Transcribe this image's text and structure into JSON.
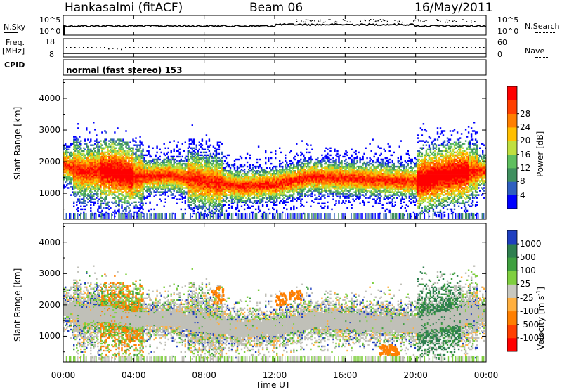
{
  "header": {
    "station": "Hankasalmi (fitACF)",
    "beam": "Beam 06",
    "date": "16/May/2011"
  },
  "strip_labels": {
    "nsky": "N.Sky",
    "nsky_ticks": [
      "10^5",
      "10^0"
    ],
    "nsearch": "N.Search",
    "nsearch_ticks": [
      "10^5",
      "10^0"
    ],
    "freq": "Freq.",
    "freq_unit": "[MHz]",
    "freq_ticks": [
      "18",
      "8"
    ],
    "nave": "Nave",
    "nave_ticks": [
      "60",
      "0"
    ],
    "cpid": "CPID",
    "cpid_value": "normal (fast stereo) 153"
  },
  "colors": {
    "power_scale": [
      "#0000ff",
      "#2f5fbf",
      "#3f8f5f",
      "#5fbf5f",
      "#bfdf3f",
      "#ffbf00",
      "#ff7f00",
      "#ff3f00",
      "#ff0000"
    ],
    "velocity_scale": [
      "#1f3fbf",
      "#2f7f4f",
      "#3fa03f",
      "#7fcf3f",
      "#c8c8c0",
      "#ffaf3f",
      "#ff7f00",
      "#ff3f00",
      "#ff0000"
    ],
    "ground_scatter": "#c0c0b8"
  },
  "chart_data": [
    {
      "type": "heatmap",
      "title": "",
      "xlabel": "Time UT",
      "ylabel": "Slant Range [km]",
      "xlim": [
        "00:00",
        "00:00"
      ],
      "ylim": [
        180,
        4600
      ],
      "x_ticks": [
        "00:00",
        "04:00",
        "08:00",
        "12:00",
        "16:00",
        "20:00",
        "00:00"
      ],
      "y_ticks": [
        1000,
        2000,
        3000,
        4000
      ],
      "colorbar": {
        "label": "Power [dB]",
        "ticks": [
          4,
          8,
          12,
          16,
          20,
          24,
          28
        ],
        "range": [
          0,
          30
        ]
      },
      "band_center_km": [
        [
          0,
          1900
        ],
        [
          1,
          1650
        ],
        [
          2,
          1700
        ],
        [
          3,
          1650
        ],
        [
          4,
          1500
        ],
        [
          6,
          1550
        ],
        [
          8,
          1350
        ],
        [
          10,
          1200
        ],
        [
          12,
          1250
        ],
        [
          14,
          1500
        ],
        [
          16,
          1450
        ],
        [
          18,
          1400
        ],
        [
          20,
          1350
        ],
        [
          22,
          1600
        ],
        [
          24,
          1700
        ]
      ]
    },
    {
      "type": "heatmap",
      "title": "",
      "xlabel": "Time UT",
      "ylabel": "Slant Range [km]",
      "xlim": [
        "00:00",
        "00:00"
      ],
      "ylim": [
        180,
        4600
      ],
      "x_ticks": [
        "00:00",
        "04:00",
        "08:00",
        "12:00",
        "16:00",
        "20:00",
        "00:00"
      ],
      "y_ticks": [
        1000,
        2000,
        3000,
        4000
      ],
      "colorbar": {
        "label": "Velocity [m s^-1]",
        "ticks": [
          1000,
          500,
          100,
          25,
          -25,
          -100,
          -500,
          -1000
        ]
      }
    }
  ]
}
